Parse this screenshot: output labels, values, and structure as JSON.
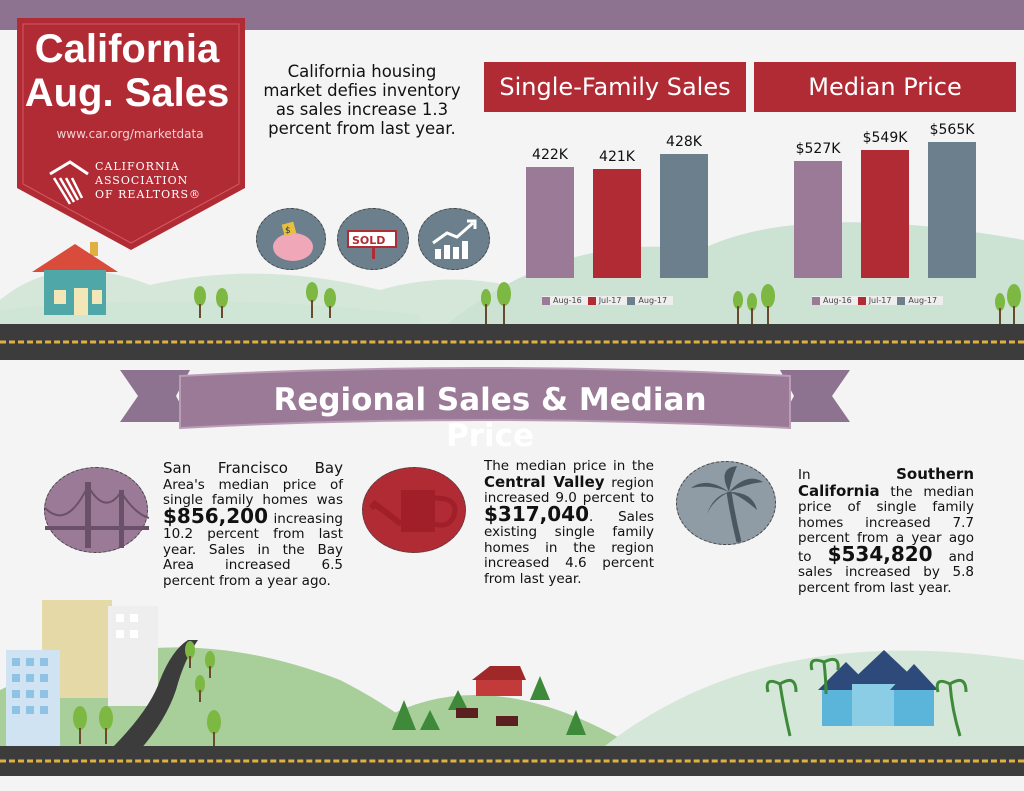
{
  "banner": {
    "title_line1": "California",
    "title_line2": "Aug. Sales",
    "url": "www.car.org/marketdata",
    "org_line1": "CALIFORNIA",
    "org_line2": "ASSOCIATION",
    "org_line3": "OF REALTORS®"
  },
  "intro": "California housing market defies inventory as sales increase 1.3 percent from last year.",
  "icons": {
    "piggy_label": "$",
    "sold_label": "SOLD"
  },
  "sales": {
    "header": "Single-Family Sales",
    "bars": [
      {
        "label": "422K",
        "value": 422,
        "color": "#9a7a96"
      },
      {
        "label": "421K",
        "value": 421,
        "color": "#b12b35"
      },
      {
        "label": "428K",
        "value": 428,
        "color": "#6b7f8c"
      }
    ],
    "legend": [
      "Aug-16",
      "Jul-17",
      "Aug-17"
    ]
  },
  "price": {
    "header": "Median Price",
    "bars": [
      {
        "label": "$527K",
        "value": 527,
        "color": "#9a7a96"
      },
      {
        "label": "$549K",
        "value": 549,
        "color": "#b12b35"
      },
      {
        "label": "$565K",
        "value": 565,
        "color": "#6b7f8c"
      }
    ],
    "legend": [
      "Aug-16",
      "Jul-17",
      "Aug-17"
    ]
  },
  "regional": {
    "title": "Regional Sales & Median Price",
    "bay": {
      "heading": "San Francisco Bay",
      "text1": "Area's median price of single family homes was",
      "price": "$856,200",
      "text2": "increasing",
      "text3": "10.2 percent from last year. Sales in the Bay Area increased 6.5 percent from a year ago."
    },
    "central": {
      "text1": "The median price in the",
      "heading": "Central Valley",
      "text2": "region increased 9.0 percent to",
      "price": "$317,040",
      "text3": ". Sales existing single family homes in the region increased 4.6 percent from last year."
    },
    "southern": {
      "text1": "In",
      "heading": "Southern California",
      "text2": "the median price of single family homes increased 7.7 percent from a year ago to",
      "price": "$534,820",
      "text3": "and sales increased by 5.8 percent from last year."
    }
  }
}
